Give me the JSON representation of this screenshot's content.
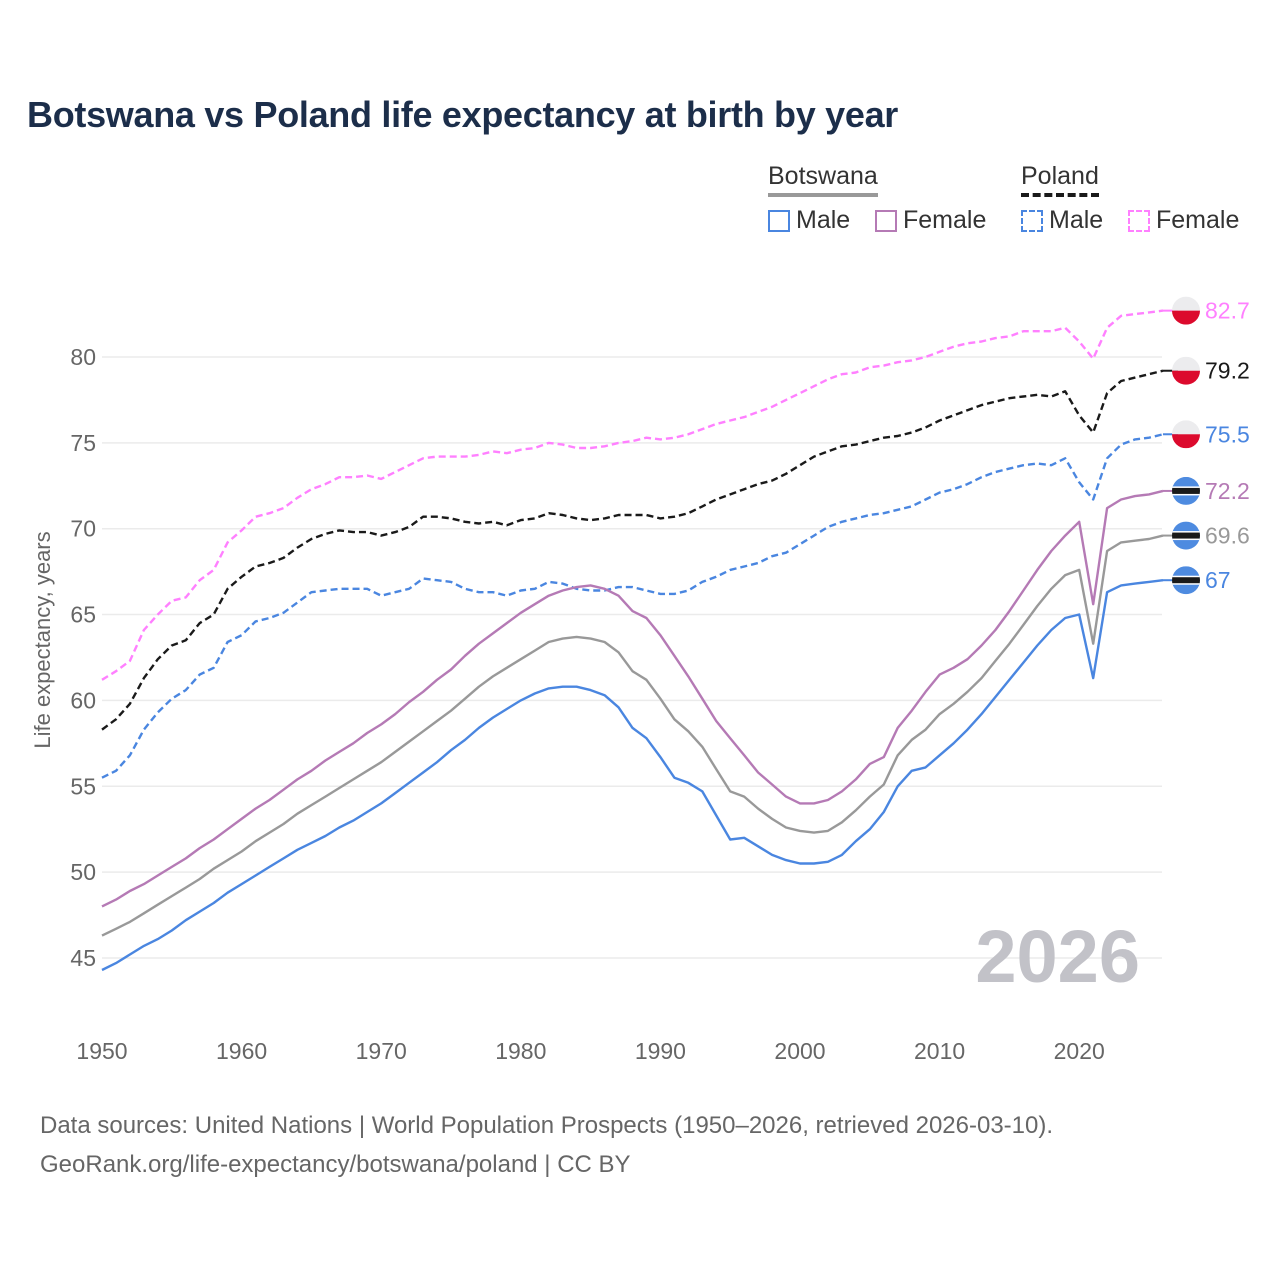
{
  "title": "Botswana vs Poland life expectancy at birth by year",
  "legend": {
    "groups": [
      {
        "name": "Botswana",
        "items": [
          "Male",
          "Female"
        ]
      },
      {
        "name": "Poland",
        "items": [
          "Male",
          "Female"
        ]
      }
    ]
  },
  "footer": {
    "line1": "Data sources: United Nations | World Population Prospects (1950–2026, retrieved 2026-03-10).",
    "line2": "GeoRank.org/life-expectancy/botswana/poland | CC BY"
  },
  "year_watermark": "2026",
  "chart_data": {
    "type": "line",
    "title": "Botswana vs Poland life expectancy at birth by year",
    "xlabel": "",
    "ylabel": "Life expectancy, years",
    "xlim": [
      1950,
      2026
    ],
    "ylim": [
      43,
      83
    ],
    "xticks": [
      1950,
      1960,
      1970,
      1980,
      1990,
      2000,
      2010,
      2020
    ],
    "yticks": [
      45,
      50,
      55,
      60,
      65,
      70,
      75,
      80
    ],
    "grid": true,
    "legend_position": "top-right",
    "x_start": 1950,
    "series": [
      {
        "name": "Poland Female",
        "country": "Poland",
        "sex": "Female",
        "color": "#ff80ff",
        "dashed": true,
        "end_label": "82.7",
        "values": [
          61.2,
          61.7,
          62.3,
          64.1,
          65.0,
          65.8,
          66.0,
          67.0,
          67.6,
          69.2,
          69.9,
          70.7,
          70.9,
          71.2,
          71.8,
          72.3,
          72.6,
          73.0,
          73.0,
          73.1,
          72.9,
          73.3,
          73.7,
          74.1,
          74.2,
          74.2,
          74.2,
          74.3,
          74.5,
          74.4,
          74.6,
          74.7,
          75.0,
          74.9,
          74.7,
          74.7,
          74.8,
          75.0,
          75.1,
          75.3,
          75.2,
          75.3,
          75.5,
          75.8,
          76.1,
          76.3,
          76.5,
          76.8,
          77.1,
          77.5,
          77.9,
          78.3,
          78.7,
          79.0,
          79.1,
          79.4,
          79.5,
          79.7,
          79.8,
          80.0,
          80.3,
          80.6,
          80.8,
          80.9,
          81.1,
          81.2,
          81.5,
          81.5,
          81.5,
          81.7,
          80.9,
          79.9,
          81.7,
          82.4,
          82.5,
          82.6,
          82.7
        ]
      },
      {
        "name": "Poland",
        "country": "Poland",
        "sex": "Total",
        "color": "#1a1a1a",
        "dashed": true,
        "end_label": "79.2",
        "values": [
          58.3,
          58.9,
          59.8,
          61.3,
          62.4,
          63.2,
          63.5,
          64.5,
          65.0,
          66.5,
          67.2,
          67.8,
          68.0,
          68.3,
          68.9,
          69.4,
          69.7,
          69.9,
          69.8,
          69.8,
          69.6,
          69.8,
          70.1,
          70.7,
          70.7,
          70.6,
          70.4,
          70.3,
          70.4,
          70.2,
          70.5,
          70.6,
          70.9,
          70.8,
          70.6,
          70.5,
          70.6,
          70.8,
          70.8,
          70.8,
          70.6,
          70.7,
          70.9,
          71.3,
          71.7,
          72.0,
          72.3,
          72.6,
          72.8,
          73.2,
          73.7,
          74.2,
          74.5,
          74.8,
          74.9,
          75.1,
          75.3,
          75.4,
          75.6,
          75.9,
          76.3,
          76.6,
          76.9,
          77.2,
          77.4,
          77.6,
          77.7,
          77.8,
          77.7,
          78.0,
          76.6,
          75.6,
          77.9,
          78.6,
          78.8,
          79.0,
          79.2
        ]
      },
      {
        "name": "Poland Male",
        "country": "Poland",
        "sex": "Male",
        "color": "#4a86e0",
        "dashed": true,
        "end_label": "75.5",
        "values": [
          55.5,
          55.9,
          56.8,
          58.3,
          59.3,
          60.1,
          60.6,
          61.5,
          61.9,
          63.4,
          63.8,
          64.6,
          64.8,
          65.1,
          65.7,
          66.3,
          66.4,
          66.5,
          66.5,
          66.5,
          66.1,
          66.3,
          66.5,
          67.1,
          67.0,
          66.9,
          66.5,
          66.3,
          66.3,
          66.1,
          66.4,
          66.5,
          66.9,
          66.8,
          66.5,
          66.4,
          66.4,
          66.6,
          66.6,
          66.4,
          66.2,
          66.2,
          66.4,
          66.9,
          67.2,
          67.6,
          67.8,
          68.0,
          68.4,
          68.6,
          69.1,
          69.6,
          70.1,
          70.4,
          70.6,
          70.8,
          70.9,
          71.1,
          71.3,
          71.7,
          72.1,
          72.3,
          72.6,
          73.0,
          73.3,
          73.5,
          73.7,
          73.8,
          73.7,
          74.1,
          72.7,
          71.7,
          74.1,
          74.9,
          75.2,
          75.3,
          75.5
        ]
      },
      {
        "name": "Botswana Female",
        "country": "Botswana",
        "sex": "Female",
        "color": "#b57ab5",
        "dashed": false,
        "end_label": "72.2",
        "values": [
          48.0,
          48.4,
          48.9,
          49.3,
          49.8,
          50.3,
          50.8,
          51.4,
          51.9,
          52.5,
          53.1,
          53.7,
          54.2,
          54.8,
          55.4,
          55.9,
          56.5,
          57.0,
          57.5,
          58.1,
          58.6,
          59.2,
          59.9,
          60.5,
          61.2,
          61.8,
          62.6,
          63.3,
          63.9,
          64.5,
          65.1,
          65.6,
          66.1,
          66.4,
          66.6,
          66.7,
          66.5,
          66.1,
          65.2,
          64.8,
          63.8,
          62.6,
          61.4,
          60.1,
          58.8,
          57.8,
          56.8,
          55.8,
          55.1,
          54.4,
          54.0,
          54.0,
          54.2,
          54.7,
          55.4,
          56.3,
          56.7,
          58.4,
          59.4,
          60.5,
          61.5,
          61.9,
          62.4,
          63.2,
          64.1,
          65.2,
          66.4,
          67.6,
          68.7,
          69.6,
          70.4,
          65.6,
          71.2,
          71.7,
          71.9,
          72.0,
          72.2
        ]
      },
      {
        "name": "Botswana",
        "country": "Botswana",
        "sex": "Total",
        "color": "#999999",
        "dashed": false,
        "end_label": "69.6",
        "values": [
          46.3,
          46.7,
          47.1,
          47.6,
          48.1,
          48.6,
          49.1,
          49.6,
          50.2,
          50.7,
          51.2,
          51.8,
          52.3,
          52.8,
          53.4,
          53.9,
          54.4,
          54.9,
          55.4,
          55.9,
          56.4,
          57.0,
          57.6,
          58.2,
          58.8,
          59.4,
          60.1,
          60.8,
          61.4,
          61.9,
          62.4,
          62.9,
          63.4,
          63.6,
          63.7,
          63.6,
          63.4,
          62.8,
          61.7,
          61.2,
          60.1,
          58.9,
          58.2,
          57.3,
          56.0,
          54.7,
          54.4,
          53.7,
          53.1,
          52.6,
          52.4,
          52.3,
          52.4,
          52.9,
          53.6,
          54.4,
          55.1,
          56.8,
          57.7,
          58.3,
          59.2,
          59.8,
          60.5,
          61.3,
          62.3,
          63.3,
          64.4,
          65.5,
          66.5,
          67.3,
          67.6,
          63.3,
          68.7,
          69.2,
          69.3,
          69.4,
          69.6
        ]
      },
      {
        "name": "Botswana Male",
        "country": "Botswana",
        "sex": "Male",
        "color": "#4a86e0",
        "dashed": false,
        "end_label": "67",
        "values": [
          44.3,
          44.7,
          45.2,
          45.7,
          46.1,
          46.6,
          47.2,
          47.7,
          48.2,
          48.8,
          49.3,
          49.8,
          50.3,
          50.8,
          51.3,
          51.7,
          52.1,
          52.6,
          53.0,
          53.5,
          54.0,
          54.6,
          55.2,
          55.8,
          56.4,
          57.1,
          57.7,
          58.4,
          59.0,
          59.5,
          60.0,
          60.4,
          60.7,
          60.8,
          60.8,
          60.6,
          60.3,
          59.6,
          58.4,
          57.8,
          56.7,
          55.5,
          55.2,
          54.7,
          53.3,
          51.9,
          52.0,
          51.5,
          51.0,
          50.7,
          50.5,
          50.5,
          50.6,
          51.0,
          51.8,
          52.5,
          53.5,
          55.0,
          55.9,
          56.1,
          56.8,
          57.5,
          58.3,
          59.2,
          60.2,
          61.2,
          62.2,
          63.2,
          64.1,
          64.8,
          65.0,
          61.3,
          66.3,
          66.7,
          66.8,
          66.9,
          67.0
        ]
      }
    ]
  }
}
